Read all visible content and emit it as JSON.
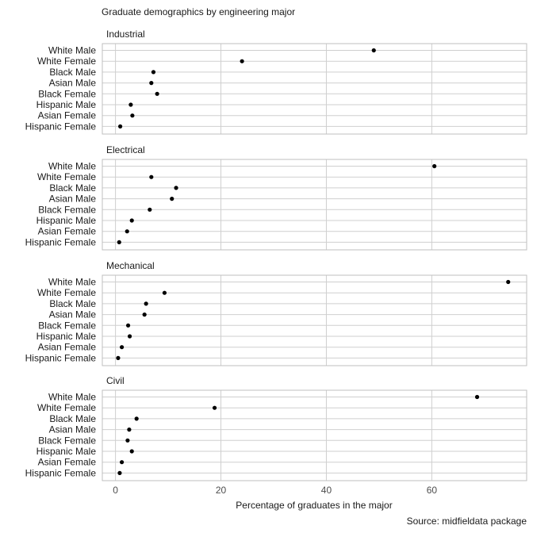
{
  "chart_data": {
    "type": "scatter",
    "title": "Graduate demographics by engineering major",
    "xlabel": "Percentage of graduates in the major",
    "caption": "Source: midfieldata package",
    "xlim": [
      -2.5,
      78
    ],
    "xticks": [
      0,
      20,
      40,
      60
    ],
    "categories": [
      "White Male",
      "White Female",
      "Black Male",
      "Asian Male",
      "Black Female",
      "Hispanic Male",
      "Asian Female",
      "Hispanic Female"
    ],
    "facets": [
      {
        "name": "Industrial",
        "values": [
          49,
          24,
          7.2,
          6.8,
          7.9,
          2.9,
          3.2,
          0.9
        ]
      },
      {
        "name": "Electrical",
        "values": [
          60.5,
          6.8,
          11.5,
          10.7,
          6.5,
          3.1,
          2.2,
          0.7
        ]
      },
      {
        "name": "Mechanical",
        "values": [
          74.5,
          9.3,
          5.8,
          5.5,
          2.4,
          2.7,
          1.2,
          0.5
        ]
      },
      {
        "name": "Civil",
        "values": [
          68.6,
          18.8,
          4.0,
          2.6,
          2.3,
          3.1,
          1.2,
          0.8
        ]
      }
    ]
  }
}
